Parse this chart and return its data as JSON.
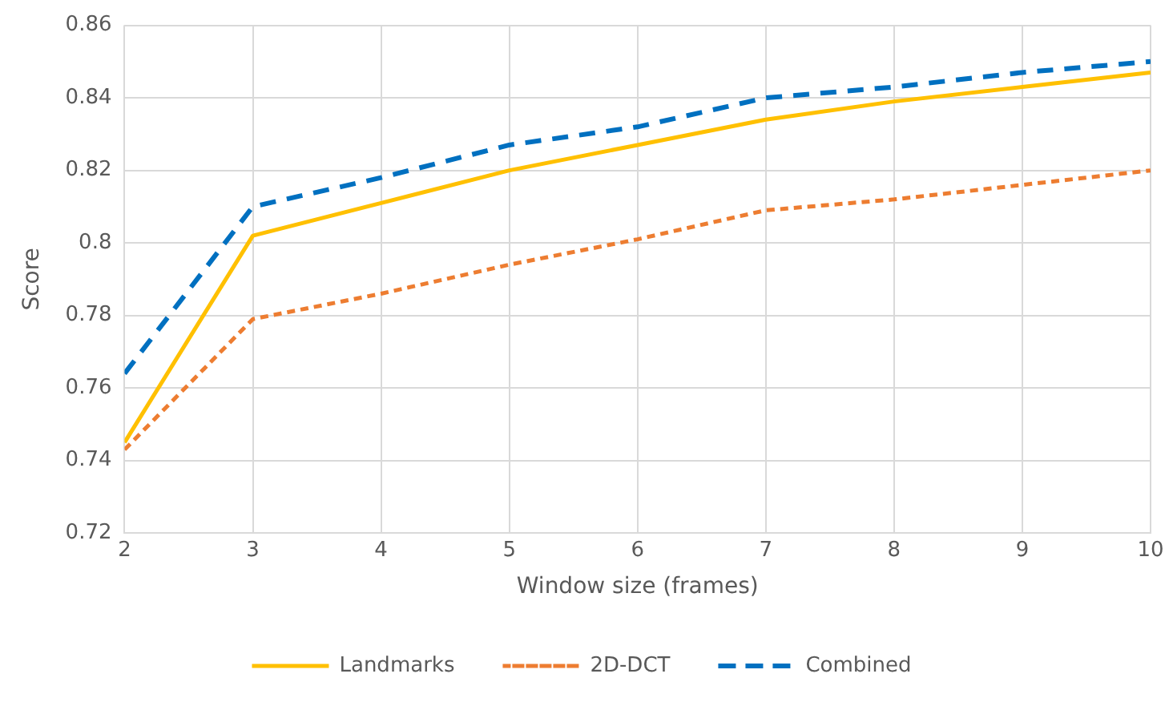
{
  "chart_data": {
    "type": "line",
    "xlabel": "Window size (frames)",
    "ylabel": "Score",
    "x": [
      2,
      3,
      4,
      5,
      6,
      7,
      8,
      9,
      10
    ],
    "series": [
      {
        "name": "Landmarks",
        "color": "#ffc000",
        "line_style": "solid",
        "values": [
          0.745,
          0.802,
          0.811,
          0.82,
          0.827,
          0.834,
          0.839,
          0.843,
          0.847
        ]
      },
      {
        "name": "2D-DCT",
        "color": "#ed7d31",
        "line_style": "dotted",
        "values": [
          0.743,
          0.779,
          0.786,
          0.794,
          0.801,
          0.809,
          0.812,
          0.816,
          0.82
        ]
      },
      {
        "name": "Combined",
        "color": "#0070c0",
        "line_style": "dashed",
        "values": [
          0.764,
          0.81,
          0.818,
          0.827,
          0.832,
          0.84,
          0.843,
          0.847,
          0.85
        ]
      }
    ],
    "xlim": [
      2,
      10
    ],
    "xticks": [
      2,
      3,
      4,
      5,
      6,
      7,
      8,
      9,
      10
    ],
    "ylim": [
      0.72,
      0.86
    ],
    "yticks": [
      0.72,
      0.74,
      0.76,
      0.78,
      0.8,
      0.82,
      0.84,
      0.86
    ],
    "grid": true,
    "legend": "bottom",
    "marker": "none"
  }
}
